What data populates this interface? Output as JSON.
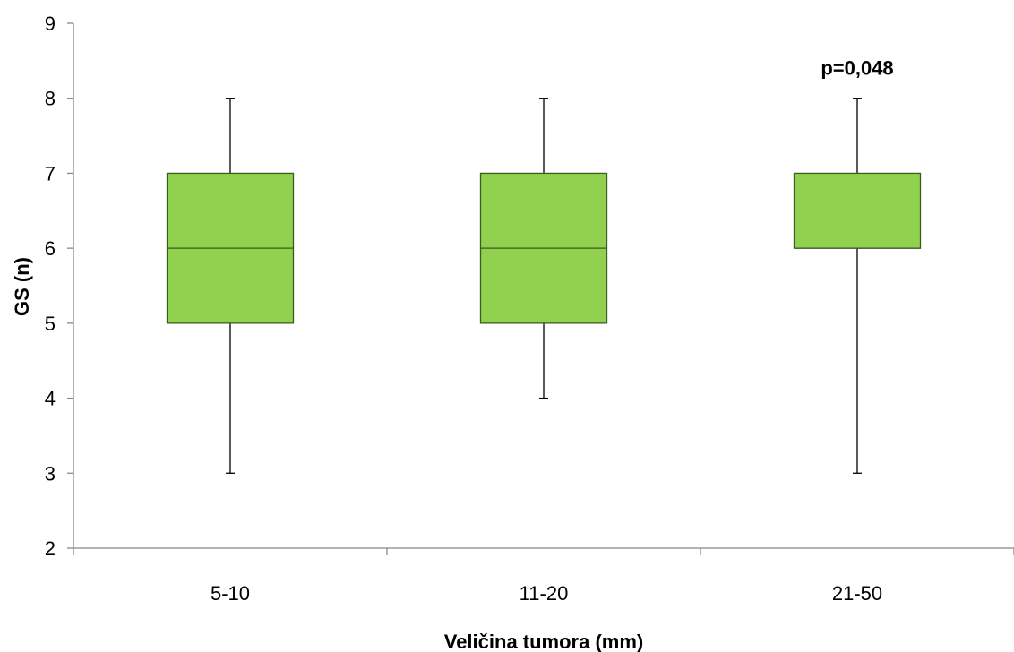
{
  "chart_data": {
    "type": "box",
    "xlabel": "Veličina tumora (mm)",
    "ylabel": "GS (n)",
    "ylim": [
      2,
      9
    ],
    "yticks": [
      "2",
      "3",
      "4",
      "5",
      "6",
      "7",
      "8",
      "9"
    ],
    "categories": [
      "5-10",
      "11-20",
      "21-50"
    ],
    "boxes": [
      {
        "category": "5-10",
        "min": 3,
        "q1": 5,
        "median": 6,
        "q3": 7,
        "max": 8
      },
      {
        "category": "11-20",
        "min": 4,
        "q1": 5,
        "median": 6,
        "q3": 7,
        "max": 8
      },
      {
        "category": "21-50",
        "min": 3,
        "q1": 6,
        "median": 6,
        "q3": 7,
        "max": 8
      }
    ],
    "annotations": [
      {
        "category": "21-50",
        "text": "p=0,048"
      }
    ],
    "colors": {
      "box_fill": "#92d050",
      "box_stroke": "#3b5e1c",
      "axis": "#888888",
      "whisker": "#000000"
    },
    "grid": false,
    "legend": "none"
  }
}
